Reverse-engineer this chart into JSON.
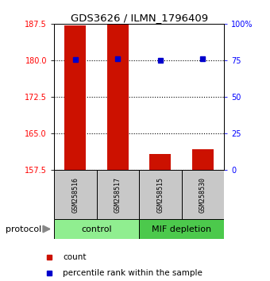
{
  "title": "GDS3626 / ILMN_1796409",
  "samples": [
    "GSM258516",
    "GSM258517",
    "GSM258515",
    "GSM258530"
  ],
  "groups": [
    "control",
    "control",
    "MIF depletion",
    "MIF depletion"
  ],
  "group_colors": {
    "control": "#90EE90",
    "MIF depletion": "#4CC94C"
  },
  "bar_values": [
    187.2,
    187.4,
    160.8,
    161.8
  ],
  "bar_bottom": 157.5,
  "percentile_values": [
    75.5,
    76.0,
    75.0,
    76.0
  ],
  "ylim_left": [
    157.5,
    187.5
  ],
  "ylim_right": [
    0,
    100
  ],
  "yticks_left": [
    157.5,
    165.0,
    172.5,
    180.0,
    187.5
  ],
  "yticks_right": [
    0,
    25,
    50,
    75,
    100
  ],
  "ytick_labels_right": [
    "0",
    "25",
    "50",
    "75",
    "100%"
  ],
  "bar_color": "#cc1100",
  "percentile_color": "#0000cc",
  "bar_width": 0.5,
  "gridline_y": [
    157.5,
    165.0,
    172.5,
    180.0
  ],
  "legend_red_label": "count",
  "legend_blue_label": "percentile rank within the sample",
  "protocol_label": "protocol",
  "tick_label_fontsize": 7,
  "title_fontsize": 9.5
}
